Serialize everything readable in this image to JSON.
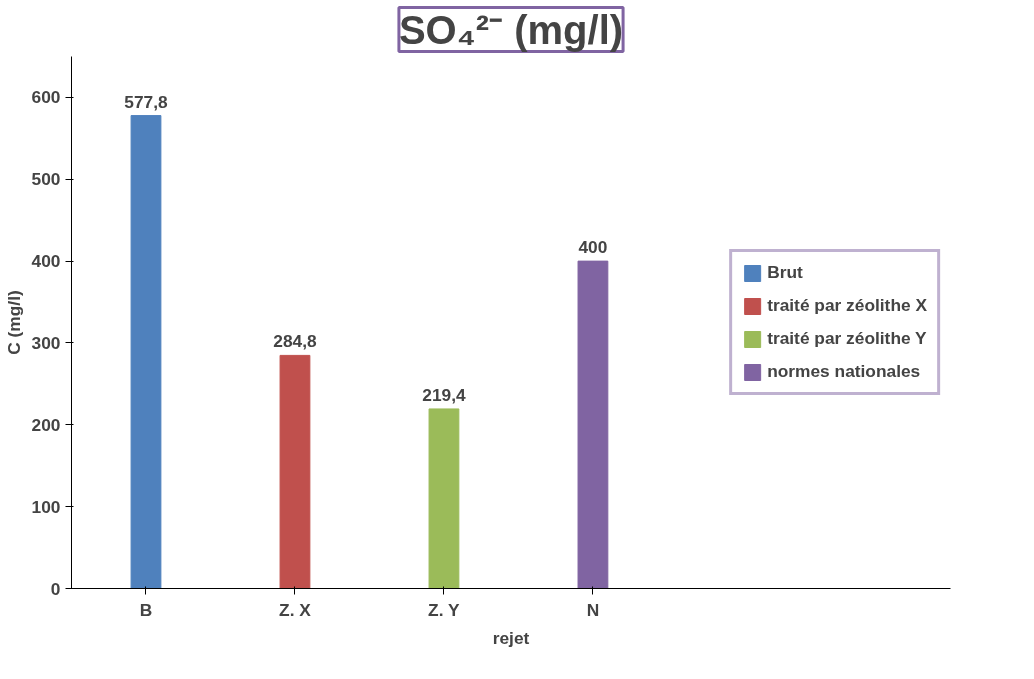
{
  "chart_data": {
    "type": "bar",
    "title": "SO₄²⁻ (mg/l)",
    "xlabel": "rejet",
    "ylabel": "C (mg/l)",
    "categories": [
      "B",
      "Z. X",
      "Z. Y",
      "N"
    ],
    "series": [
      {
        "name": "Brut",
        "color": "#4f81bd",
        "values": [
          577.8,
          null,
          null,
          null
        ],
        "value_labels": [
          "577,8",
          null,
          null,
          null
        ]
      },
      {
        "name": "traité par zéolithe X",
        "color": "#c0504d",
        "values": [
          null,
          284.8,
          null,
          null
        ],
        "value_labels": [
          null,
          "284,8",
          null,
          null
        ]
      },
      {
        "name": "traité par zéolithe Y",
        "color": "#9bbb59",
        "values": [
          null,
          null,
          219.4,
          null
        ],
        "value_labels": [
          null,
          null,
          "219,4",
          null
        ]
      },
      {
        "name": "normes nationales",
        "color": "#8064a2",
        "values": [
          null,
          null,
          null,
          400
        ],
        "value_labels": [
          null,
          null,
          null,
          "400"
        ]
      }
    ],
    "ylim": [
      0,
      650
    ],
    "yticks": [
      0,
      100,
      200,
      300,
      400,
      500,
      600
    ],
    "grid": false,
    "legend": "right"
  }
}
